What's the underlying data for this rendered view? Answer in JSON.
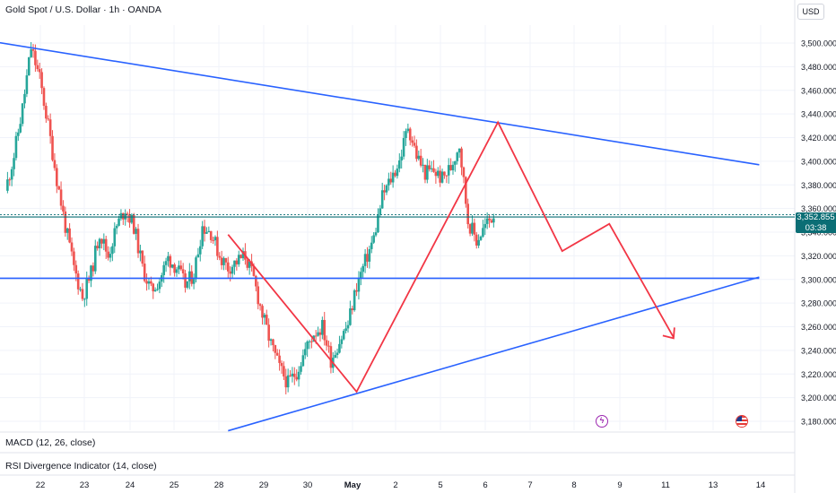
{
  "header": {
    "title": "Gold Spot / U.S. Dollar · 1h · OANDA",
    "currency": "USD"
  },
  "current_price": {
    "price_label": "3,352.855",
    "countdown": "03:38"
  },
  "indicators": [
    {
      "label": "MACD (12, 26, close)"
    },
    {
      "label": "RSI Divergence Indicator (14, close)"
    }
  ],
  "colors": {
    "up": "#26a69a",
    "down": "#ef5350",
    "trendline": "#2962ff",
    "projection": "#f23645",
    "price_line": "#0b6e75",
    "grid": "#f0f3fa"
  },
  "chart_data": {
    "type": "candlestick",
    "title": "Gold Spot / U.S. Dollar · 1h · OANDA",
    "y_axis": {
      "min": 3170,
      "max": 3510,
      "ticks": [
        3180,
        3200,
        3220,
        3240,
        3260,
        3280,
        3300,
        3320,
        3340,
        3360,
        3380,
        3400,
        3420,
        3440,
        3460,
        3480,
        3500
      ],
      "tick_labels": [
        "3,180.000",
        "3,200.000",
        "3,220.000",
        "3,240.000",
        "3,260.000",
        "3,280.000",
        "3,300.000",
        "3,320.000",
        "3,340.000",
        "3,360.000",
        "3,380.000",
        "3,400.000",
        "3,420.000",
        "3,440.000",
        "3,460.000",
        "3,480.000",
        "3,500.000"
      ],
      "position": "right"
    },
    "x_axis": {
      "labels": [
        "22",
        "23",
        "24",
        "25",
        "28",
        "29",
        "30",
        "May",
        "2",
        "5",
        "6",
        "7",
        "8",
        "9",
        "11",
        "13",
        "14"
      ]
    },
    "grid": true,
    "last_price": 3352.855,
    "price_path": [
      [
        0,
        3375
      ],
      [
        1,
        3405
      ],
      [
        2,
        3445
      ],
      [
        3,
        3496
      ],
      [
        4,
        3470
      ],
      [
        5,
        3430
      ],
      [
        6,
        3385
      ],
      [
        7,
        3345
      ],
      [
        8,
        3310
      ],
      [
        9,
        3285
      ],
      [
        10,
        3305
      ],
      [
        11,
        3340
      ],
      [
        12,
        3320
      ],
      [
        13,
        3345
      ],
      [
        14,
        3360
      ],
      [
        15,
        3345
      ],
      [
        16,
        3310
      ],
      [
        17,
        3290
      ],
      [
        18,
        3300
      ],
      [
        19,
        3318
      ],
      [
        20,
        3310
      ],
      [
        21,
        3295
      ],
      [
        22,
        3305
      ],
      [
        23,
        3345
      ],
      [
        24,
        3340
      ],
      [
        25,
        3320
      ],
      [
        26,
        3310
      ],
      [
        27,
        3315
      ],
      [
        28,
        3320
      ],
      [
        29,
        3300
      ],
      [
        30,
        3270
      ],
      [
        31,
        3245
      ],
      [
        32,
        3225
      ],
      [
        33,
        3212
      ],
      [
        34,
        3222
      ],
      [
        35,
        3240
      ],
      [
        36,
        3255
      ],
      [
        37,
        3260
      ],
      [
        38,
        3232
      ],
      [
        39,
        3248
      ],
      [
        40,
        3262
      ],
      [
        41,
        3295
      ],
      [
        42,
        3315
      ],
      [
        43,
        3335
      ],
      [
        44,
        3370
      ],
      [
        45,
        3385
      ],
      [
        46,
        3400
      ],
      [
        47,
        3430
      ],
      [
        48,
        3405
      ],
      [
        49,
        3390
      ],
      [
        50,
        3392
      ],
      [
        51,
        3385
      ],
      [
        52,
        3395
      ],
      [
        53,
        3415
      ],
      [
        54,
        3350
      ],
      [
        55,
        3333
      ],
      [
        56,
        3345
      ],
      [
        57,
        3355
      ]
    ],
    "trendlines": [
      {
        "name": "upper descending resistance",
        "from": [
          -3,
          3503
        ],
        "to": [
          88,
          3397
        ]
      },
      {
        "name": "lower ascending support",
        "from": [
          26,
          3172
        ],
        "to": [
          88,
          3302
        ]
      },
      {
        "name": "horizontal support",
        "from": [
          -3,
          3301
        ],
        "to": [
          88,
          3301
        ]
      }
    ],
    "projection_path": [
      [
        26,
        3338
      ],
      [
        41,
        3205
      ],
      [
        57.5,
        3433
      ],
      [
        65,
        3324
      ],
      [
        70.5,
        3347
      ],
      [
        78,
        3251
      ]
    ]
  }
}
